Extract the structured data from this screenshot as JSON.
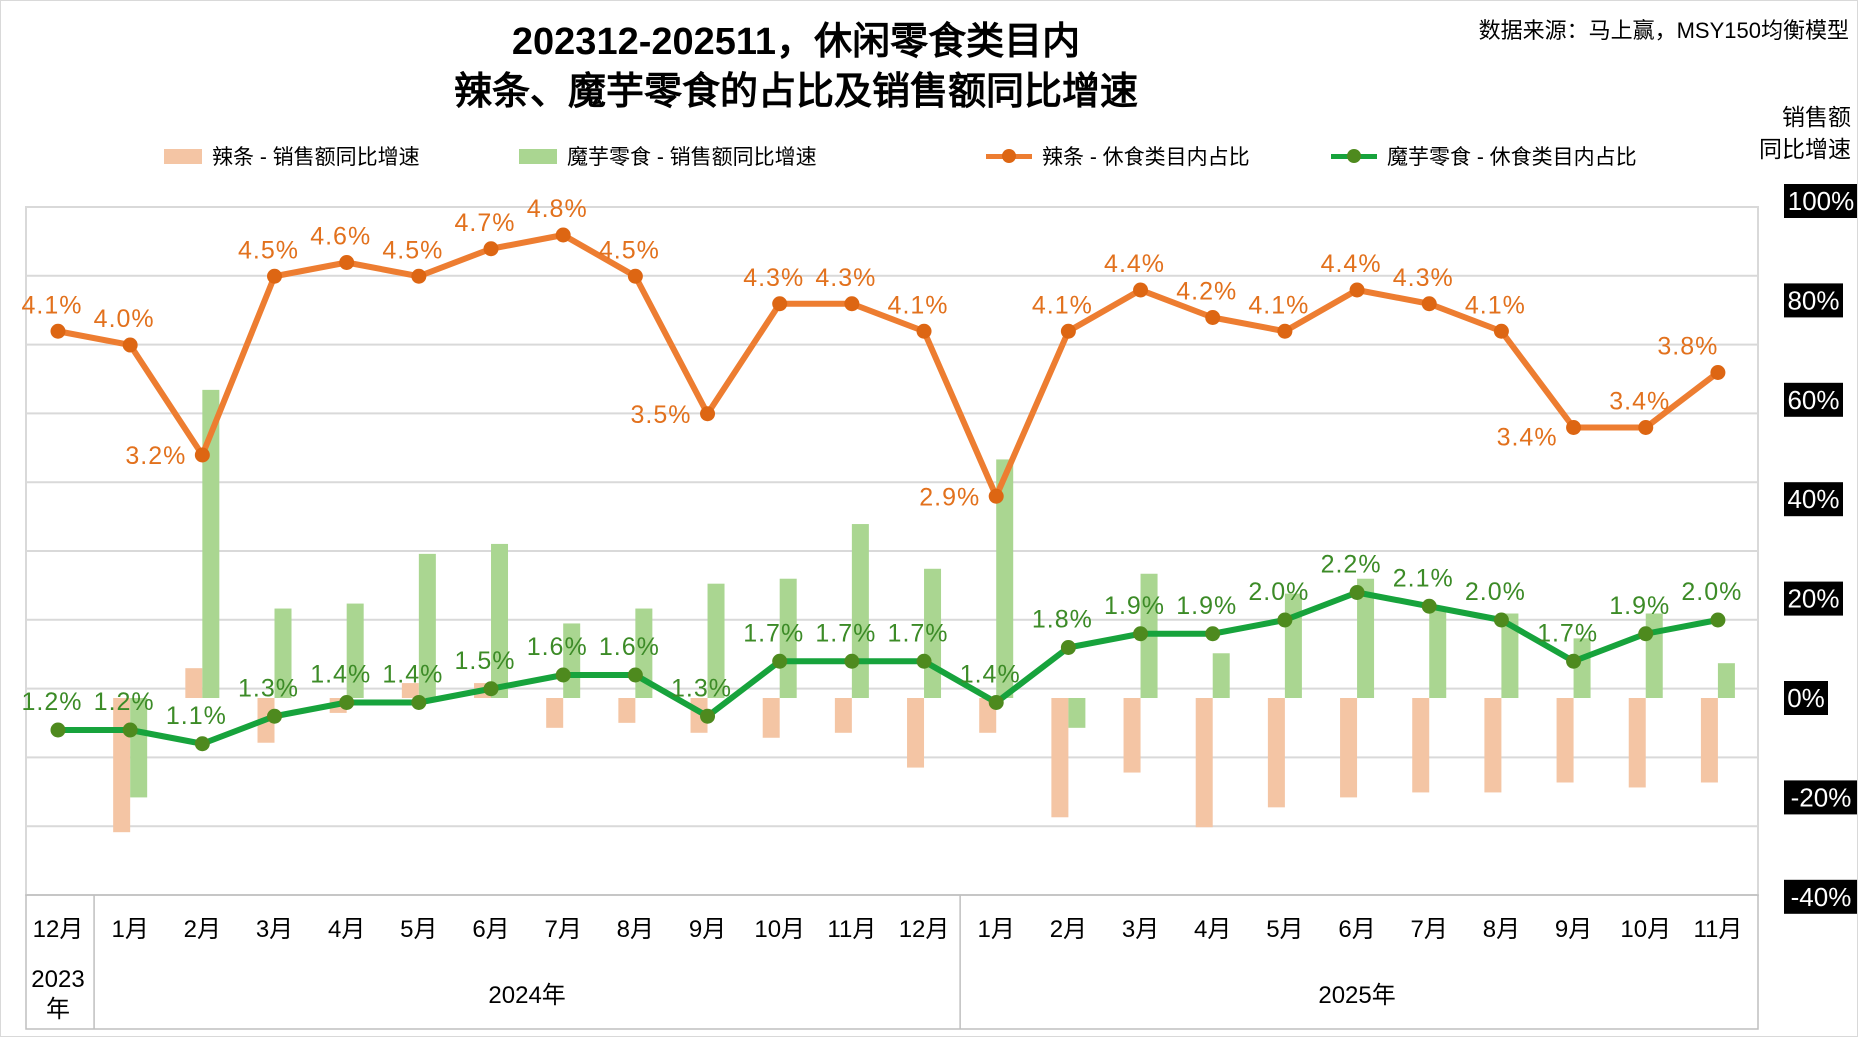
{
  "title": {
    "line1": "202312-202511，休闲零食类目内",
    "line2": "辣条、魔芋零食的占比及销售额同比增速"
  },
  "source_note": "数据来源：马上赢，MSY150均衡模型",
  "right_axis_title": {
    "line1": "销售额",
    "line2": "同比增速"
  },
  "legend": {
    "items": [
      {
        "label": "辣条 - 销售额同比增速",
        "type": "bar",
        "color": "#F4C5A4"
      },
      {
        "label": "魔芋零食 - 销售额同比增速",
        "type": "bar",
        "color": "#AAD691"
      },
      {
        "label": "辣条 - 休食类目内占比",
        "type": "line",
        "color": "#ED7D31",
        "marker_color": "#DD6613"
      },
      {
        "label": "魔芋零食 - 休食类目内占比",
        "type": "line",
        "color": "#17A33C",
        "marker_color": "#4E8A1E"
      }
    ]
  },
  "chart_data": {
    "type": "combo",
    "categories": [
      "12月",
      "1月",
      "2月",
      "3月",
      "4月",
      "5月",
      "6月",
      "7月",
      "8月",
      "9月",
      "10月",
      "11月",
      "12月",
      "1月",
      "2月",
      "3月",
      "4月",
      "5月",
      "6月",
      "7月",
      "8月",
      "9月",
      "10月",
      "11月"
    ],
    "year_groups": [
      {
        "label": "2023年",
        "start": 0,
        "end": 0
      },
      {
        "label": "2024年",
        "start": 1,
        "end": 12
      },
      {
        "label": "2025年",
        "start": 13,
        "end": 23
      }
    ],
    "right_axis": {
      "title": "销售额同比增速",
      "ticks": [
        "100%",
        "80%",
        "60%",
        "40%",
        "20%",
        "0%",
        "-20%",
        "-40%"
      ],
      "tick_values": [
        100,
        80,
        60,
        40,
        20,
        0,
        -20,
        -40
      ],
      "range": [
        -40,
        100
      ]
    },
    "left_axis": {
      "visible": false,
      "range": [
        0,
        5
      ],
      "gridline_step": 0.5,
      "grid": true
    },
    "legend_position": "top",
    "series": [
      {
        "key": "latiao-growth",
        "name": "辣条 - 销售额同比增速",
        "type": "bar",
        "axis": "right",
        "unit": "%",
        "color": "#F4C5A4",
        "values": [
          null,
          -27,
          6,
          -9,
          -3,
          3,
          3,
          -6,
          -5,
          -7,
          -8,
          -7,
          -14,
          -7,
          -24,
          -15,
          -26,
          -22,
          -20,
          -19,
          -19,
          -17,
          -18,
          -17
        ],
        "note": "values estimated from bar pixel heights, bars carry no data labels"
      },
      {
        "key": "moyu-growth",
        "name": "魔芋零食 - 销售额同比增速",
        "type": "bar",
        "axis": "right",
        "unit": "%",
        "color": "#AAD691",
        "values": [
          null,
          -20,
          62,
          18,
          19,
          29,
          31,
          15,
          18,
          23,
          24,
          35,
          26,
          48,
          -6,
          25,
          9,
          21,
          24,
          18,
          17,
          12,
          17,
          7
        ],
        "note": "values estimated from bar pixel heights, bars carry no data labels"
      },
      {
        "key": "latiao-share",
        "name": "辣条 - 休食类目内占比",
        "type": "line",
        "axis": "left",
        "unit": "%",
        "color": "#ED7D31",
        "marker_color": "#DD6613",
        "label_color": "#E2711D",
        "values": [
          4.1,
          4.0,
          3.2,
          4.5,
          4.6,
          4.5,
          4.7,
          4.8,
          4.5,
          3.5,
          4.3,
          4.3,
          4.1,
          2.9,
          4.1,
          4.4,
          4.2,
          4.1,
          4.4,
          4.3,
          4.1,
          3.4,
          3.4,
          3.8
        ],
        "data_labels": [
          "4.1%",
          "4.0%",
          "3.2%",
          "4.5%",
          "4.6%",
          "4.5%",
          "4.7%",
          "4.8%",
          "4.5%",
          "3.5%",
          "4.3%",
          "4.3%",
          "4.1%",
          "2.9%",
          "4.1%",
          "4.4%",
          "4.2%",
          "4.1%",
          "4.4%",
          "4.3%",
          "4.1%",
          "3.4%",
          "3.4%",
          "3.8%"
        ],
        "label_pos_overrides": {
          "2": "left",
          "9": "left",
          "13": "left",
          "21": "left-below",
          "23": "above-left"
        }
      },
      {
        "key": "moyu-share",
        "name": "魔芋零食 - 休食类目内占比",
        "type": "line",
        "axis": "left",
        "unit": "%",
        "color": "#17A33C",
        "marker_color": "#4E8A1E",
        "label_color": "#3C8B27",
        "values": [
          1.2,
          1.2,
          1.1,
          1.3,
          1.4,
          1.4,
          1.5,
          1.6,
          1.6,
          1.3,
          1.7,
          1.7,
          1.7,
          1.4,
          1.8,
          1.9,
          1.9,
          2.0,
          2.2,
          2.1,
          2.0,
          1.7,
          1.9,
          2.0
        ],
        "data_labels": [
          "1.2%",
          "1.2%",
          "1.1%",
          "1.3%",
          "1.4%",
          "1.4%",
          "1.5%",
          "1.6%",
          "1.6%",
          "1.3%",
          "1.7%",
          "1.7%",
          "1.7%",
          "1.4%",
          "1.8%",
          "1.9%",
          "1.9%",
          "2.0%",
          "2.2%",
          "2.1%",
          "2.0%",
          "1.7%",
          "1.9%",
          "2.0%"
        ],
        "label_pos_overrides": {}
      }
    ],
    "colors": {
      "gridline": "#D9D9D9",
      "axis_box_border": "#BFBFBF",
      "tick_label_bg": "#000000",
      "tick_label_text": "#FFFFFF"
    }
  }
}
